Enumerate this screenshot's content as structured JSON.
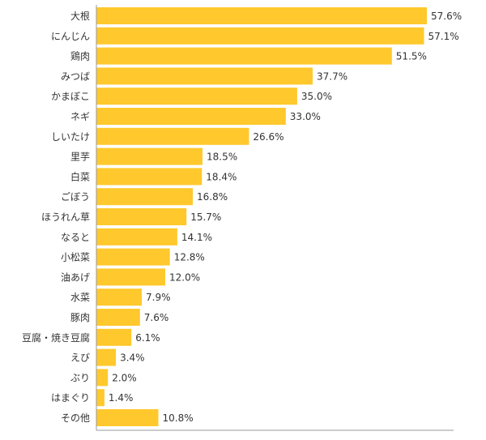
{
  "chart_data": {
    "type": "bar",
    "orientation": "horizontal",
    "categories": [
      "大根",
      "にんじん",
      "鶏肉",
      "みつば",
      "かまぼこ",
      "ネギ",
      "しいたけ",
      "里芋",
      "白菜",
      "ごぼう",
      "ほうれん草",
      "なると",
      "小松菜",
      "油あげ",
      "水菜",
      "豚肉",
      "豆腐・焼き豆腐",
      "えび",
      "ぶり",
      "はまぐり",
      "その他"
    ],
    "values": [
      57.6,
      57.1,
      51.5,
      37.7,
      35.0,
      33.0,
      26.6,
      18.5,
      18.4,
      16.8,
      15.7,
      14.1,
      12.8,
      12.0,
      7.9,
      7.6,
      6.1,
      3.4,
      2.0,
      1.4,
      10.8
    ],
    "value_labels": [
      "57.6%",
      "57.1%",
      "51.5%",
      "37.7%",
      "35.0%",
      "33.0%",
      "26.6%",
      "18.5%",
      "18.4%",
      "16.8%",
      "15.7%",
      "14.1%",
      "12.8%",
      "12.0%",
      "7.9%",
      "7.6%",
      "6.1%",
      "3.4%",
      "2.0%",
      "1.4%",
      "10.8%"
    ],
    "xlim": [
      0,
      60
    ],
    "grid": false,
    "legend": "none",
    "bar_color": "#FFC82C",
    "axis_color": "#999999",
    "label_color": "#333333"
  }
}
